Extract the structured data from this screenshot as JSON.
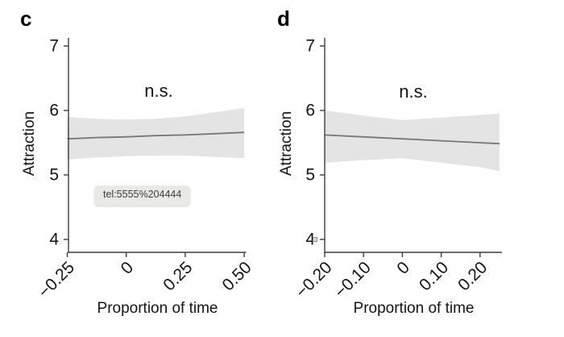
{
  "colors": {
    "band": "#e4e4e5",
    "line": "#777777",
    "axis": "#3d3d3d",
    "text": "#141414",
    "tooltip_bg": "#e9e9e7",
    "tooltip_text": "#3e3e3e"
  },
  "overlay": {
    "tooltip_text": "tel:5555%204444"
  },
  "chart_data": [
    {
      "type": "line",
      "panel_label": "c",
      "annotation": "n.s.",
      "xlabel": "Proportion of time",
      "ylabel": "Attraction",
      "x_ticks": [
        -0.25,
        0,
        0.25,
        0.5
      ],
      "x_tick_labels": [
        "−0.25",
        "0",
        "0.25",
        "0.50"
      ],
      "y_ticks": [
        4,
        5,
        6,
        7
      ],
      "y_tick_labels": [
        "4",
        "5",
        "6",
        "7"
      ],
      "xlim": [
        -0.25,
        0.5
      ],
      "ylim": [
        3.8,
        7.125
      ],
      "grid": false,
      "legend": "none",
      "series": [
        {
          "name": "fitted-regression-line",
          "x": [
            -0.25,
            -0.125,
            0,
            0.125,
            0.25,
            0.375,
            0.5
          ],
          "y": [
            5.56,
            5.58,
            5.59,
            5.61,
            5.62,
            5.64,
            5.66
          ]
        }
      ],
      "confidence_band": {
        "x": [
          -0.25,
          -0.125,
          0,
          0.125,
          0.25,
          0.375,
          0.5
        ],
        "upper": [
          5.9,
          5.87,
          5.86,
          5.87,
          5.91,
          5.97,
          6.04
        ],
        "lower": [
          5.24,
          5.27,
          5.29,
          5.3,
          5.3,
          5.28,
          5.26
        ]
      }
    },
    {
      "type": "line",
      "panel_label": "d",
      "annotation": "n.s.",
      "xlabel": "Proportion of time",
      "ylabel": "Attraction",
      "x_ticks": [
        -0.2,
        -0.1,
        0,
        0.1,
        0.2
      ],
      "x_tick_labels": [
        "−0.20",
        "−0.10",
        "0",
        "0.10",
        "0.20"
      ],
      "y_ticks": [
        4,
        5,
        6,
        7
      ],
      "y_tick_labels": [
        "4",
        "5",
        "6",
        "7"
      ],
      "xlim": [
        -0.2,
        0.25
      ],
      "ylim": [
        3.8,
        7.125
      ],
      "grid": false,
      "legend": "none",
      "series": [
        {
          "name": "fitted-regression-line",
          "x": [
            -0.2,
            -0.1,
            0,
            0.1,
            0.2,
            0.25
          ],
          "y": [
            5.62,
            5.59,
            5.56,
            5.53,
            5.5,
            5.485
          ]
        }
      ],
      "confidence_band": {
        "x": [
          -0.2,
          -0.1,
          0,
          0.1,
          0.2,
          0.25
        ],
        "upper": [
          6.0,
          5.92,
          5.85,
          5.89,
          5.93,
          5.95
        ],
        "lower": [
          5.19,
          5.23,
          5.26,
          5.19,
          5.12,
          5.06
        ]
      }
    }
  ]
}
